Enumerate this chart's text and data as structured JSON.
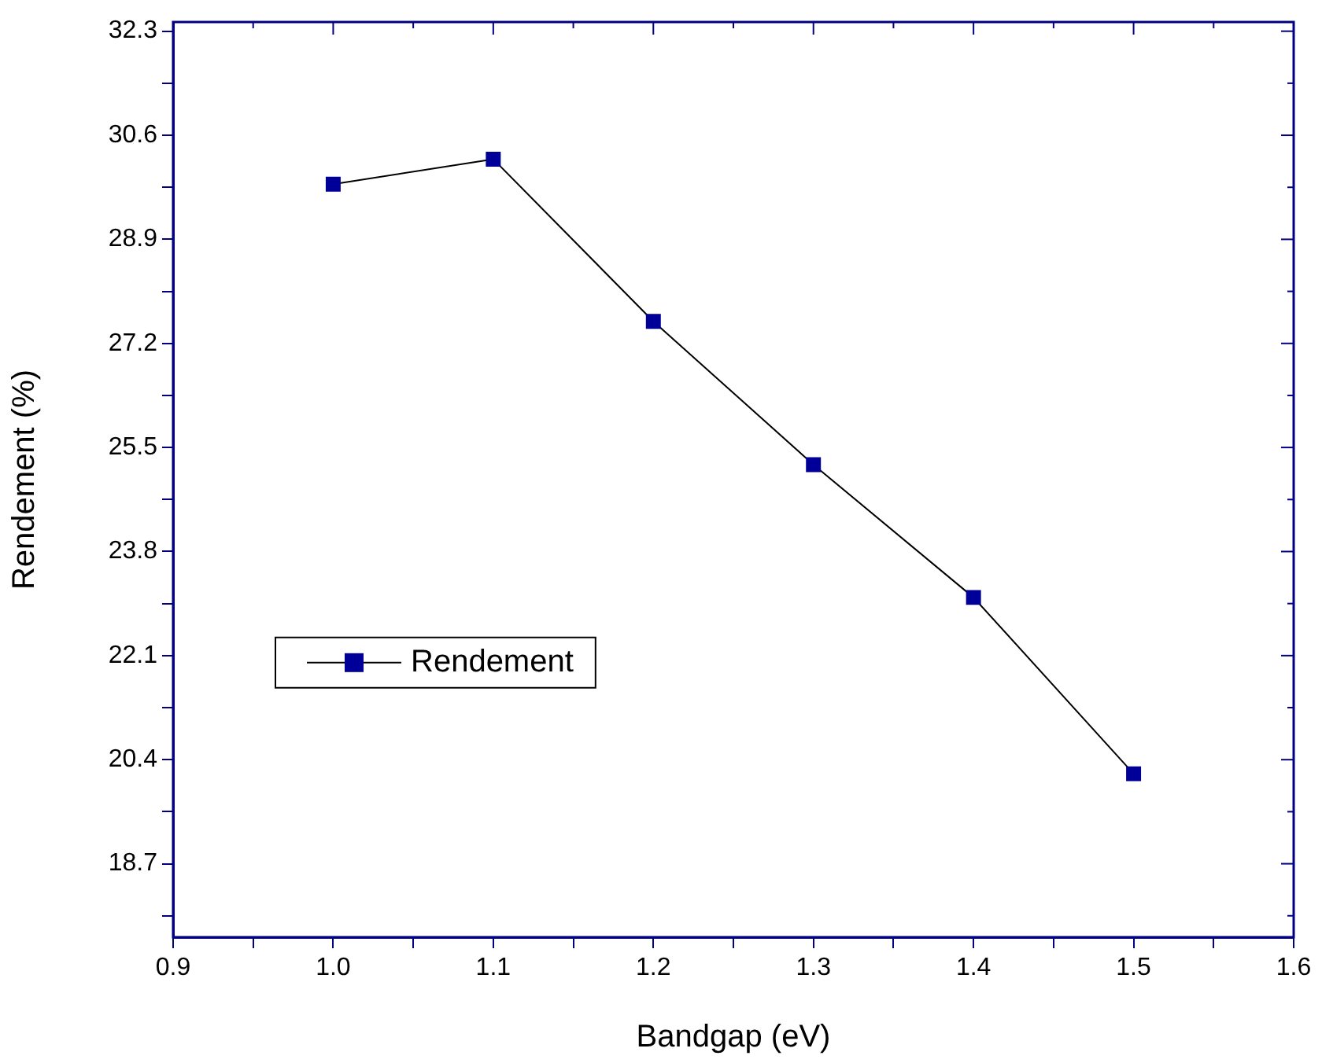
{
  "chart_data": {
    "type": "line",
    "xlabel": "Bandgap (eV)",
    "ylabel": "Rendement (%)",
    "x": [
      1.0,
      1.1,
      1.2,
      1.3,
      1.4,
      1.5
    ],
    "series": [
      {
        "name": "Rendement",
        "color": "#000099",
        "values": [
          29.8,
          30.21,
          27.56,
          25.22,
          23.05,
          20.17
        ]
      }
    ],
    "xlim": [
      0.9,
      1.6
    ],
    "xticks": [
      0.9,
      {
        "value": 0.95,
        "label": null
      },
      "1.0",
      {
        "value": 1.05,
        "label": null
      },
      1.1,
      {
        "value": 1.15,
        "label": null
      },
      1.2,
      {
        "value": 1.25,
        "label": null
      },
      1.3,
      {
        "value": 1.35,
        "label": null
      },
      1.4,
      {
        "value": 1.45,
        "label": null
      },
      1.5,
      {
        "value": 1.55,
        "label": null
      },
      1.6
    ],
    "ylim": [
      17.5,
      32.45
    ],
    "yticks": [
      {
        "value": 17.85,
        "label": null
      },
      18.7,
      {
        "value": 19.55,
        "label": null
      },
      20.4,
      {
        "value": 21.25,
        "label": null
      },
      22.1,
      {
        "value": 22.95,
        "label": null
      },
      23.8,
      {
        "value": 24.65,
        "label": null
      },
      25.5,
      {
        "value": 26.35,
        "label": null
      },
      27.2,
      {
        "value": 28.05,
        "label": null
      },
      28.9,
      {
        "value": 29.75,
        "label": null
      },
      30.6,
      {
        "value": 31.45,
        "label": null
      },
      32.3
    ],
    "legend": "center left",
    "marker": "square",
    "line_style": "solid",
    "grid": false
  }
}
